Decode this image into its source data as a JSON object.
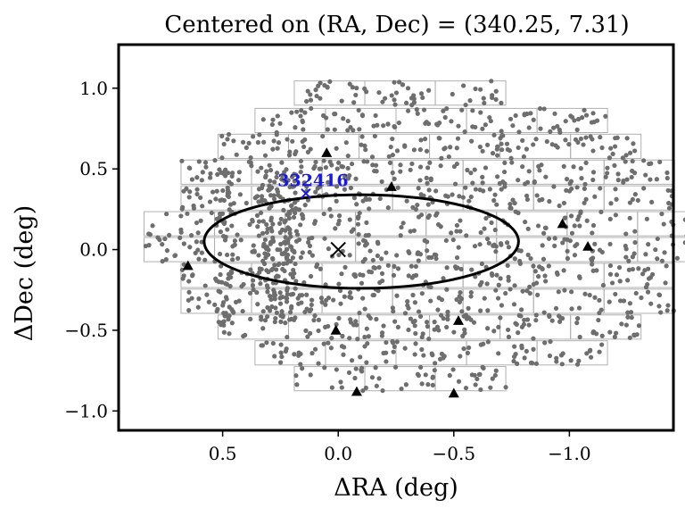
{
  "chart_data": {
    "type": "scatter",
    "title": "Centered on (RA, Dec) = (340.25, 7.31)",
    "xlabel": "ΔRA (deg)",
    "ylabel": "ΔDec (deg)",
    "xlim": [
      0.95,
      -1.45
    ],
    "ylim": [
      -1.12,
      1.27
    ],
    "x_inverted": true,
    "grid": false,
    "xticks": [
      0.5,
      0.0,
      -0.5,
      -1.0
    ],
    "xtick_labels": [
      "0.5",
      "0.0",
      "−0.5",
      "−1.0"
    ],
    "yticks": [
      1.0,
      0.5,
      0.0,
      -0.5,
      -1.0
    ],
    "ytick_labels": [
      "1.0",
      "0.5",
      "0.0",
      "−0.5",
      "−1.0"
    ],
    "center_marker": {
      "x": 0.0,
      "y": 0.0,
      "symbol": "x"
    },
    "ellipse": {
      "cx": -0.1,
      "cy": 0.05,
      "rx": 0.68,
      "ry": 0.29
    },
    "annotation": {
      "text": "332416",
      "x": 0.14,
      "y": 0.37,
      "color": "#1a1adc"
    },
    "triangles": [
      {
        "x": 0.05,
        "y": 0.6
      },
      {
        "x": -0.23,
        "y": 0.39
      },
      {
        "x": 0.65,
        "y": -0.1
      },
      {
        "x": 0.01,
        "y": -0.5
      },
      {
        "x": -0.52,
        "y": -0.44
      },
      {
        "x": -0.97,
        "y": 0.16
      },
      {
        "x": -1.08,
        "y": 0.02
      },
      {
        "x": -0.08,
        "y": -0.88
      },
      {
        "x": -0.5,
        "y": -0.89
      }
    ],
    "ccd_rows": [
      {
        "y": 0.97,
        "x_left": 0.19,
        "n": 3
      },
      {
        "y": 0.8,
        "x_left": 0.36,
        "n": 5
      },
      {
        "y": 0.64,
        "x_left": 0.52,
        "n": 6
      },
      {
        "y": 0.48,
        "x_left": 0.68,
        "n": 7
      },
      {
        "y": 0.32,
        "x_left": 0.68,
        "n": 7
      },
      {
        "y": 0.16,
        "x_left": 0.84,
        "n": 8
      },
      {
        "y": 0.0,
        "x_left": 0.84,
        "n": 8
      },
      {
        "y": -0.16,
        "x_left": 0.68,
        "n": 7
      },
      {
        "y": -0.32,
        "x_left": 0.68,
        "n": 7
      },
      {
        "y": -0.48,
        "x_left": 0.52,
        "n": 6
      },
      {
        "y": -0.64,
        "x_left": 0.36,
        "n": 5
      },
      {
        "y": -0.8,
        "x_left": 0.19,
        "n": 3
      }
    ],
    "ccd_width": 0.305,
    "ccd_height": 0.15,
    "colors": {
      "points": "#6e6e6e",
      "ccd_outline": "#b0b0b0",
      "markers": "#000000",
      "annotation": "#1a1adc"
    }
  }
}
